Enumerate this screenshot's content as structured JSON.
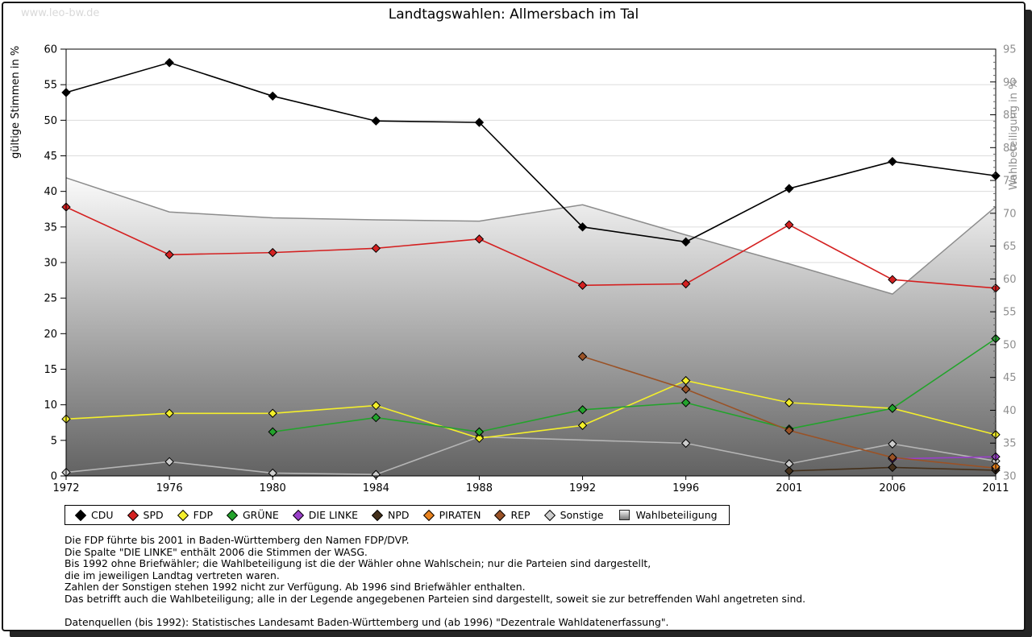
{
  "page": {
    "watermark": "www.leo-bw.de"
  },
  "chart_data": {
    "type": "line",
    "title": "Landtagswahlen: Allmersbach im Tal",
    "legend_position": "bottom",
    "grid": "horizontal gridlines at left-axis 5%-steps",
    "x": {
      "categories": [
        "1972",
        "1976",
        "1980",
        "1984",
        "1988",
        "1992",
        "1996",
        "2001",
        "2006",
        "2011"
      ]
    },
    "y_left": {
      "label": "gültige Stimmen in %",
      "min": 0,
      "max": 60,
      "tick_step": 5,
      "ticks": [
        "60",
        "55",
        "50",
        "45",
        "40",
        "35",
        "30",
        "25",
        "20",
        "15",
        "10",
        "5",
        "0"
      ]
    },
    "y_right": {
      "label": "Wahlbeteiligung in %",
      "min": 30,
      "max": 95,
      "tick_step": 5,
      "ticks": [
        "95",
        "90",
        "85",
        "80",
        "75",
        "70",
        "65",
        "60",
        "55",
        "50",
        "45",
        "40",
        "35",
        "30"
      ]
    },
    "series": [
      {
        "name": "CDU",
        "color": "#000000",
        "marker": "diamond",
        "axis": "left",
        "values": [
          53.9,
          58.1,
          53.4,
          49.9,
          49.7,
          35.0,
          32.9,
          40.4,
          44.2,
          42.2
        ]
      },
      {
        "name": "SPD",
        "color": "#d42121",
        "marker": "diamond",
        "axis": "left",
        "values": [
          37.8,
          31.1,
          31.4,
          32.0,
          33.3,
          26.8,
          27.0,
          35.3,
          27.6,
          26.4
        ]
      },
      {
        "name": "FDP",
        "color": "#f4ef2b",
        "marker": "diamond",
        "axis": "left",
        "values": [
          8.0,
          8.8,
          8.8,
          9.9,
          5.3,
          7.1,
          13.4,
          10.3,
          9.5,
          5.8
        ]
      },
      {
        "name": "GRÜNE",
        "color": "#23a32c",
        "marker": "diamond",
        "axis": "left",
        "values": [
          null,
          null,
          6.2,
          8.2,
          6.2,
          9.3,
          10.3,
          6.6,
          9.5,
          19.3
        ]
      },
      {
        "name": "DIE LINKE",
        "color": "#9a3fca",
        "marker": "diamond",
        "axis": "left",
        "values": [
          null,
          null,
          null,
          null,
          null,
          null,
          null,
          null,
          2.4,
          2.7
        ]
      },
      {
        "name": "NPD",
        "color": "#44301b",
        "marker": "diamond",
        "axis": "left",
        "values": [
          null,
          null,
          null,
          null,
          null,
          null,
          null,
          0.7,
          1.2,
          0.8
        ]
      },
      {
        "name": "PIRATEN",
        "color": "#e8821e",
        "marker": "diamond",
        "axis": "left",
        "values": [
          null,
          null,
          null,
          null,
          null,
          null,
          null,
          null,
          null,
          1.3
        ]
      },
      {
        "name": "REP",
        "color": "#9a5226",
        "marker": "diamond",
        "axis": "left",
        "values": [
          null,
          null,
          null,
          null,
          null,
          16.8,
          12.2,
          6.4,
          2.6,
          1.1
        ]
      },
      {
        "name": "Sonstige",
        "color": "#cdcdcd",
        "marker": "diamond",
        "axis": "left",
        "line_color": "#b5b5b5",
        "values": [
          0.5,
          2.0,
          0.4,
          0.2,
          5.5,
          null,
          4.6,
          1.7,
          4.5,
          2.1
        ]
      },
      {
        "name": "Wahlbeteiligung",
        "color": "#8c8c8c",
        "marker": "square",
        "axis": "right",
        "style": "area",
        "values": [
          75.4,
          70.2,
          69.3,
          69.0,
          68.8,
          71.3,
          66.7,
          62.3,
          57.7,
          71.0
        ]
      }
    ]
  },
  "footnotes": {
    "lines": [
      "Die FDP führte bis 2001 in Baden-Württemberg den Namen FDP/DVP.",
      "Die Spalte \"DIE LINKE\" enthält 2006 die Stimmen der WASG.",
      "Bis 1992 ohne Briefwähler; die Wahlbeteiligung ist die der Wähler ohne Wahlschein; nur die Parteien sind dargestellt,",
      "die im jeweiligen Landtag vertreten waren.",
      "Zahlen der Sonstigen stehen 1992 nicht zur Verfügung. Ab 1996 sind Briefwähler enthalten.",
      "Das betrifft auch die Wahlbeteiligung; alle in der Legende angegebenen Parteien sind dargestellt, soweit sie zur betreffenden Wahl angetreten sind."
    ],
    "source": "Datenquellen (bis 1992): Statistisches Landesamt Baden-Württemberg und (ab 1996) \"Dezentrale Wahldatenerfassung\"."
  }
}
